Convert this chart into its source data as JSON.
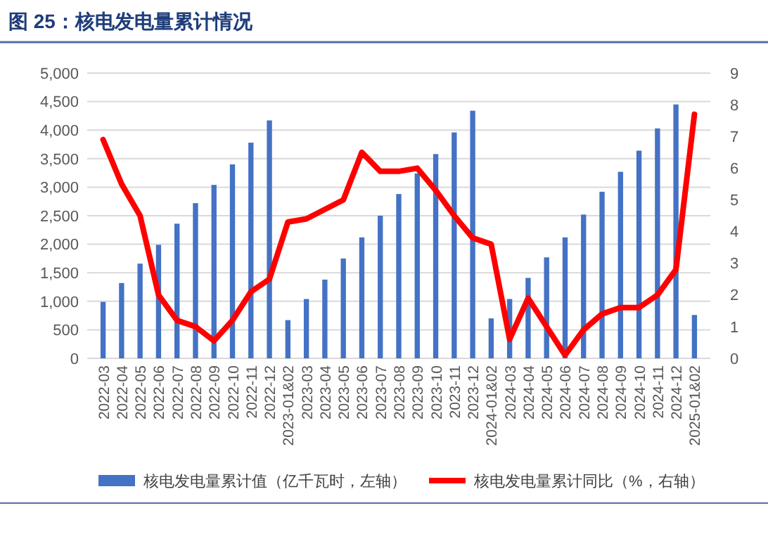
{
  "chart_data": {
    "type": "bar",
    "title": "图 25：核电发电量累计情况",
    "categories": [
      "2022-03",
      "2022-04",
      "2022-05",
      "2022-06",
      "2022-07",
      "2022-08",
      "2022-09",
      "2022-10",
      "2022-11",
      "2022-12",
      "2023-01&02",
      "2023-03",
      "2023-04",
      "2023-05",
      "2023-06",
      "2023-07",
      "2023-08",
      "2023-09",
      "2023-10",
      "2023-11",
      "2023-12",
      "2024-01&02",
      "2024-03",
      "2024-04",
      "2024-05",
      "2024-06",
      "2024-07",
      "2024-08",
      "2024-09",
      "2024-10",
      "2024-11",
      "2024-12",
      "2025-01&02"
    ],
    "series": [
      {
        "name": "核电发电量累计值（亿千瓦时，左轴）",
        "color": "#4472c4",
        "values": [
          990,
          1320,
          1660,
          1990,
          2360,
          2720,
          3040,
          3400,
          3780,
          4170,
          670,
          1040,
          1380,
          1750,
          2120,
          2500,
          2880,
          3240,
          3580,
          3960,
          4340,
          700,
          1040,
          1410,
          1770,
          2120,
          2520,
          2920,
          3270,
          3640,
          4030,
          4450,
          760
        ]
      },
      {
        "name": "核电发电量累计同比（%，右轴）",
        "type": "line",
        "axis": "y2",
        "color": "#ff0000",
        "values": [
          6.9,
          5.5,
          4.5,
          2.0,
          1.2,
          1.0,
          0.55,
          1.2,
          2.1,
          2.5,
          4.3,
          4.4,
          4.7,
          5.0,
          6.5,
          5.9,
          5.9,
          6.0,
          5.3,
          4.5,
          3.8,
          3.6,
          0.6,
          1.9,
          1.0,
          0.1,
          0.9,
          1.4,
          1.6,
          1.6,
          2.0,
          2.8,
          7.7
        ]
      }
    ],
    "ylim": [
      0,
      5000
    ],
    "yticks": [
      {
        "value": 0,
        "label": "0"
      },
      {
        "value": 500,
        "label": "500"
      },
      {
        "value": 1000,
        "label": "1,000"
      },
      {
        "value": 1500,
        "label": "1,500"
      },
      {
        "value": 2000,
        "label": "2,000"
      },
      {
        "value": 2500,
        "label": "2,500"
      },
      {
        "value": 3000,
        "label": "3,000"
      },
      {
        "value": 3500,
        "label": "3,500"
      },
      {
        "value": 4000,
        "label": "4,000"
      },
      {
        "value": 4500,
        "label": "4,500"
      },
      {
        "value": 5000,
        "label": "5,000"
      }
    ],
    "y2lim": [
      0,
      9
    ],
    "y2ticks": [
      0,
      1,
      2,
      3,
      4,
      5,
      6,
      7,
      8,
      9
    ],
    "grid": "y",
    "legend": "bottom"
  }
}
